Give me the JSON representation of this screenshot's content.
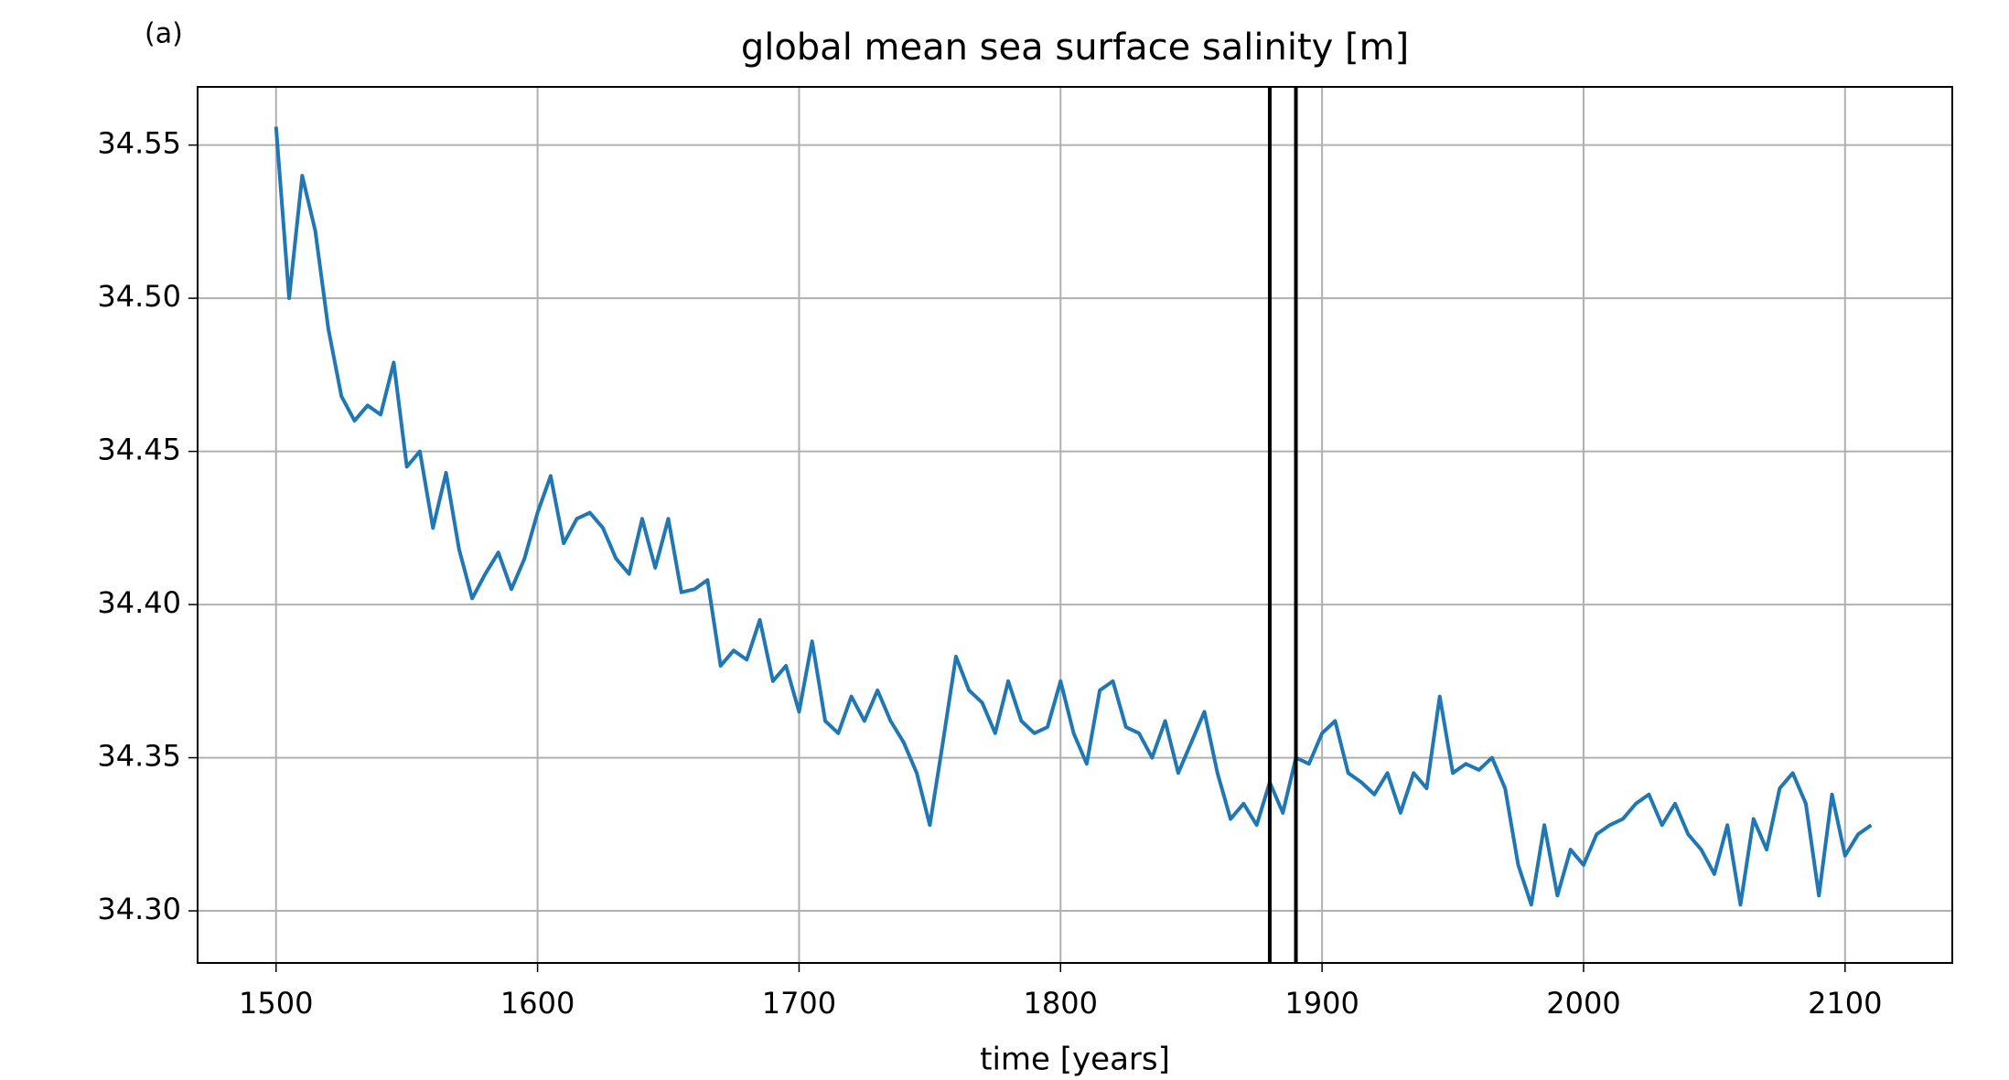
{
  "chart_data": {
    "type": "line",
    "panel_label": "(a)",
    "title": "global mean sea surface salinity [m]",
    "xlabel": "time [years]",
    "x": [
      1500,
      1505,
      1510,
      1515,
      1520,
      1525,
      1530,
      1535,
      1540,
      1545,
      1550,
      1555,
      1560,
      1565,
      1570,
      1575,
      1580,
      1585,
      1590,
      1595,
      1600,
      1605,
      1610,
      1615,
      1620,
      1625,
      1630,
      1635,
      1640,
      1645,
      1650,
      1655,
      1660,
      1665,
      1670,
      1675,
      1680,
      1685,
      1690,
      1695,
      1700,
      1705,
      1710,
      1715,
      1720,
      1725,
      1730,
      1735,
      1740,
      1745,
      1750,
      1755,
      1760,
      1765,
      1770,
      1775,
      1780,
      1785,
      1790,
      1795,
      1800,
      1805,
      1810,
      1815,
      1820,
      1825,
      1830,
      1835,
      1840,
      1845,
      1850,
      1855,
      1860,
      1865,
      1870,
      1875,
      1880,
      1885,
      1890,
      1895,
      1900,
      1905,
      1910,
      1915,
      1920,
      1925,
      1930,
      1935,
      1940,
      1945,
      1950,
      1955,
      1960,
      1965,
      1970,
      1975,
      1980,
      1985,
      1990,
      1995,
      2000,
      2005,
      2010,
      2015,
      2020,
      2025,
      2030,
      2035,
      2040,
      2045,
      2050,
      2055,
      2060,
      2065,
      2070,
      2075,
      2080,
      2085,
      2090,
      2095,
      2100,
      2105,
      2110
    ],
    "series": [
      {
        "color": "#1f77b4",
        "values": [
          34.556,
          34.5,
          34.54,
          34.522,
          34.49,
          34.468,
          34.46,
          34.465,
          34.462,
          34.479,
          34.445,
          34.45,
          34.425,
          34.443,
          34.418,
          34.402,
          34.41,
          34.417,
          34.405,
          34.415,
          34.43,
          34.442,
          34.42,
          34.428,
          34.43,
          34.425,
          34.415,
          34.41,
          34.428,
          34.412,
          34.428,
          34.404,
          34.405,
          34.408,
          34.38,
          34.385,
          34.382,
          34.395,
          34.375,
          34.38,
          34.365,
          34.388,
          34.362,
          34.358,
          34.37,
          34.362,
          34.372,
          34.362,
          34.355,
          34.345,
          34.328,
          34.355,
          34.383,
          34.372,
          34.368,
          34.358,
          34.375,
          34.362,
          34.358,
          34.36,
          34.375,
          34.358,
          34.348,
          34.372,
          34.375,
          34.36,
          34.358,
          34.35,
          34.362,
          34.345,
          34.355,
          34.365,
          34.345,
          34.33,
          34.335,
          34.328,
          34.342,
          34.332,
          34.35,
          34.348,
          34.358,
          34.362,
          34.345,
          34.342,
          34.338,
          34.345,
          34.332,
          34.345,
          34.34,
          34.37,
          34.345,
          34.348,
          34.346,
          34.35,
          34.34,
          34.315,
          34.302,
          34.328,
          34.305,
          34.32,
          34.315,
          34.325,
          34.328,
          34.33,
          34.335,
          34.338,
          34.328,
          34.335,
          34.325,
          34.32,
          34.312,
          34.328,
          34.302,
          34.33,
          34.32,
          34.34,
          34.345,
          34.335,
          34.305,
          34.338,
          34.318,
          34.325,
          34.328
        ]
      }
    ],
    "vlines": [
      1880,
      1890
    ],
    "vline_color": "#000000",
    "xlim": [
      1470,
      2141
    ],
    "xticks": [
      1500,
      1600,
      1700,
      1800,
      1900,
      2000,
      2100
    ],
    "ylim": [
      34.283,
      34.569
    ],
    "yticks": [
      {
        "value": 34.3,
        "label": "34.30"
      },
      34.35,
      {
        "value": 34.4,
        "label": "34.40"
      },
      34.45,
      {
        "value": 34.5,
        "label": "34.50"
      },
      34.55
    ],
    "grid": true
  }
}
